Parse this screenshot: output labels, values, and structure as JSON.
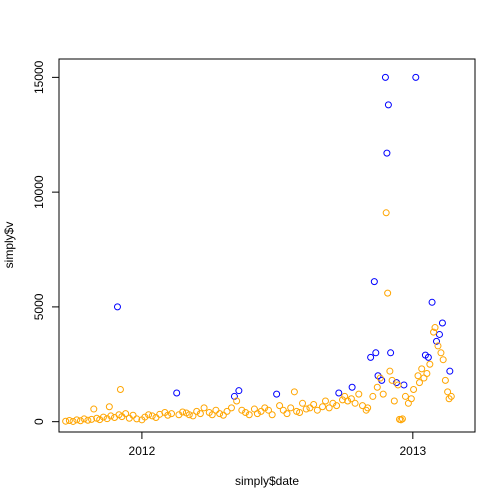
{
  "chart_data": {
    "type": "scatter",
    "title": "",
    "xlabel": "simply$date",
    "ylabel": "simply$v",
    "x_axis_kind": "date",
    "xlim": [
      "2011-09-11",
      "2013-03-26"
    ],
    "ylim": [
      -450,
      15800
    ],
    "x_ticks": [
      {
        "value": "2012-01-01",
        "label": "2012"
      },
      {
        "value": "2013-01-01",
        "label": "2013"
      }
    ],
    "y_ticks": [
      {
        "value": 0,
        "label": "0"
      },
      {
        "value": 5000,
        "label": "5000"
      },
      {
        "value": 10000,
        "label": "10000"
      },
      {
        "value": 15000,
        "label": "15000"
      }
    ],
    "grid": false,
    "legend": "none",
    "series": [
      {
        "color": "#0000ff",
        "points": [
          {
            "x": "2011-11-29",
            "y": 5000
          },
          {
            "x": "2012-02-17",
            "y": 1250
          },
          {
            "x": "2012-05-05",
            "y": 1100
          },
          {
            "x": "2012-05-11",
            "y": 1350
          },
          {
            "x": "2012-07-01",
            "y": 1200
          },
          {
            "x": "2012-09-23",
            "y": 1250
          },
          {
            "x": "2012-10-11",
            "y": 1500
          },
          {
            "x": "2012-11-05",
            "y": 2800
          },
          {
            "x": "2012-11-10",
            "y": 6100
          },
          {
            "x": "2012-11-12",
            "y": 3000
          },
          {
            "x": "2012-11-15",
            "y": 2000
          },
          {
            "x": "2012-11-20",
            "y": 1800
          },
          {
            "x": "2012-11-25",
            "y": 15000
          },
          {
            "x": "2012-11-27",
            "y": 11700
          },
          {
            "x": "2012-11-29",
            "y": 13800
          },
          {
            "x": "2012-12-02",
            "y": 3000
          },
          {
            "x": "2012-12-10",
            "y": 1700
          },
          {
            "x": "2012-12-20",
            "y": 1600
          },
          {
            "x": "2013-01-05",
            "y": 15000
          },
          {
            "x": "2013-01-18",
            "y": 2900
          },
          {
            "x": "2013-01-22",
            "y": 2800
          },
          {
            "x": "2013-01-27",
            "y": 5200
          },
          {
            "x": "2013-02-02",
            "y": 3500
          },
          {
            "x": "2013-02-06",
            "y": 3800
          },
          {
            "x": "2013-02-10",
            "y": 4300
          },
          {
            "x": "2013-02-20",
            "y": 2200
          }
        ]
      },
      {
        "color": "#ffa500",
        "points": [
          {
            "x": "2011-09-20",
            "y": 20
          },
          {
            "x": "2011-09-25",
            "y": 50
          },
          {
            "x": "2011-09-30",
            "y": 10
          },
          {
            "x": "2011-10-05",
            "y": 80
          },
          {
            "x": "2011-10-10",
            "y": 40
          },
          {
            "x": "2011-10-15",
            "y": 120
          },
          {
            "x": "2011-10-20",
            "y": 60
          },
          {
            "x": "2011-10-25",
            "y": 100
          },
          {
            "x": "2011-10-28",
            "y": 550
          },
          {
            "x": "2011-11-01",
            "y": 150
          },
          {
            "x": "2011-11-05",
            "y": 90
          },
          {
            "x": "2011-11-10",
            "y": 200
          },
          {
            "x": "2011-11-15",
            "y": 130
          },
          {
            "x": "2011-11-18",
            "y": 650
          },
          {
            "x": "2011-11-20",
            "y": 250
          },
          {
            "x": "2011-11-25",
            "y": 180
          },
          {
            "x": "2011-12-01",
            "y": 300
          },
          {
            "x": "2011-12-03",
            "y": 1400
          },
          {
            "x": "2011-12-05",
            "y": 220
          },
          {
            "x": "2011-12-10",
            "y": 350
          },
          {
            "x": "2011-12-15",
            "y": 150
          },
          {
            "x": "2011-12-20",
            "y": 280
          },
          {
            "x": "2011-12-25",
            "y": 120
          },
          {
            "x": "2012-01-01",
            "y": 80
          },
          {
            "x": "2012-01-05",
            "y": 200
          },
          {
            "x": "2012-01-10",
            "y": 300
          },
          {
            "x": "2012-01-15",
            "y": 250
          },
          {
            "x": "2012-01-20",
            "y": 180
          },
          {
            "x": "2012-01-25",
            "y": 320
          },
          {
            "x": "2012-02-01",
            "y": 400
          },
          {
            "x": "2012-02-05",
            "y": 280
          },
          {
            "x": "2012-02-10",
            "y": 350
          },
          {
            "x": "2012-02-20",
            "y": 300
          },
          {
            "x": "2012-02-25",
            "y": 420
          },
          {
            "x": "2012-03-01",
            "y": 380
          },
          {
            "x": "2012-03-05",
            "y": 300
          },
          {
            "x": "2012-03-10",
            "y": 250
          },
          {
            "x": "2012-03-15",
            "y": 450
          },
          {
            "x": "2012-03-20",
            "y": 350
          },
          {
            "x": "2012-03-25",
            "y": 600
          },
          {
            "x": "2012-04-01",
            "y": 400
          },
          {
            "x": "2012-04-05",
            "y": 300
          },
          {
            "x": "2012-04-10",
            "y": 500
          },
          {
            "x": "2012-04-15",
            "y": 350
          },
          {
            "x": "2012-04-20",
            "y": 280
          },
          {
            "x": "2012-04-25",
            "y": 450
          },
          {
            "x": "2012-05-01",
            "y": 600
          },
          {
            "x": "2012-05-08",
            "y": 900
          },
          {
            "x": "2012-05-15",
            "y": 500
          },
          {
            "x": "2012-05-20",
            "y": 400
          },
          {
            "x": "2012-05-25",
            "y": 300
          },
          {
            "x": "2012-06-01",
            "y": 550
          },
          {
            "x": "2012-06-05",
            "y": 350
          },
          {
            "x": "2012-06-10",
            "y": 450
          },
          {
            "x": "2012-06-15",
            "y": 600
          },
          {
            "x": "2012-06-20",
            "y": 500
          },
          {
            "x": "2012-06-25",
            "y": 300
          },
          {
            "x": "2012-07-05",
            "y": 700
          },
          {
            "x": "2012-07-10",
            "y": 500
          },
          {
            "x": "2012-07-15",
            "y": 350
          },
          {
            "x": "2012-07-20",
            "y": 600
          },
          {
            "x": "2012-07-25",
            "y": 1300
          },
          {
            "x": "2012-07-28",
            "y": 450
          },
          {
            "x": "2012-08-01",
            "y": 400
          },
          {
            "x": "2012-08-05",
            "y": 800
          },
          {
            "x": "2012-08-10",
            "y": 550
          },
          {
            "x": "2012-08-15",
            "y": 600
          },
          {
            "x": "2012-08-20",
            "y": 750
          },
          {
            "x": "2012-08-25",
            "y": 500
          },
          {
            "x": "2012-09-01",
            "y": 650
          },
          {
            "x": "2012-09-05",
            "y": 900
          },
          {
            "x": "2012-09-10",
            "y": 600
          },
          {
            "x": "2012-09-15",
            "y": 800
          },
          {
            "x": "2012-09-20",
            "y": 700
          },
          {
            "x": "2012-09-28",
            "y": 950
          },
          {
            "x": "2012-10-01",
            "y": 1100
          },
          {
            "x": "2012-10-05",
            "y": 900
          },
          {
            "x": "2012-10-10",
            "y": 1000
          },
          {
            "x": "2012-10-15",
            "y": 800
          },
          {
            "x": "2012-10-20",
            "y": 1200
          },
          {
            "x": "2012-10-25",
            "y": 700
          },
          {
            "x": "2012-10-30",
            "y": 500
          },
          {
            "x": "2012-11-01",
            "y": 600
          },
          {
            "x": "2012-11-08",
            "y": 1100
          },
          {
            "x": "2012-11-14",
            "y": 1500
          },
          {
            "x": "2012-11-18",
            "y": 1900
          },
          {
            "x": "2012-11-22",
            "y": 1200
          },
          {
            "x": "2012-11-26",
            "y": 9100
          },
          {
            "x": "2012-11-28",
            "y": 5600
          },
          {
            "x": "2012-12-01",
            "y": 2200
          },
          {
            "x": "2012-12-04",
            "y": 1800
          },
          {
            "x": "2012-12-07",
            "y": 900
          },
          {
            "x": "2012-12-12",
            "y": 1600
          },
          {
            "x": "2012-12-14",
            "y": 100
          },
          {
            "x": "2012-12-16",
            "y": 80
          },
          {
            "x": "2012-12-18",
            "y": 120
          },
          {
            "x": "2012-12-22",
            "y": 1100
          },
          {
            "x": "2012-12-26",
            "y": 800
          },
          {
            "x": "2012-12-30",
            "y": 1000
          },
          {
            "x": "2013-01-02",
            "y": 1400
          },
          {
            "x": "2013-01-08",
            "y": 2000
          },
          {
            "x": "2013-01-10",
            "y": 1700
          },
          {
            "x": "2013-01-13",
            "y": 2300
          },
          {
            "x": "2013-01-16",
            "y": 1900
          },
          {
            "x": "2013-01-20",
            "y": 2100
          },
          {
            "x": "2013-01-24",
            "y": 2500
          },
          {
            "x": "2013-01-29",
            "y": 3900
          },
          {
            "x": "2013-01-31",
            "y": 4100
          },
          {
            "x": "2013-02-04",
            "y": 3300
          },
          {
            "x": "2013-02-08",
            "y": 3000
          },
          {
            "x": "2013-02-11",
            "y": 2700
          },
          {
            "x": "2013-02-14",
            "y": 1800
          },
          {
            "x": "2013-02-17",
            "y": 1300
          },
          {
            "x": "2013-02-19",
            "y": 1000
          },
          {
            "x": "2013-02-22",
            "y": 1100
          }
        ]
      }
    ]
  }
}
